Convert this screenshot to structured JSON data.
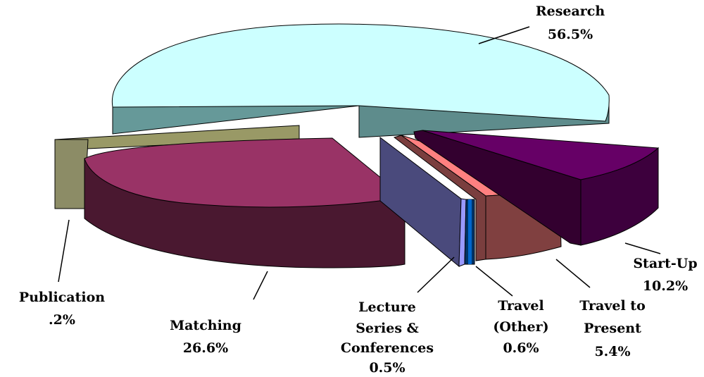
{
  "chart_data": {
    "type": "pie",
    "title": "",
    "slices": [
      {
        "name": "Research",
        "label": "Research",
        "value_label": "56.5%",
        "value": 56.5,
        "color_top": "#ccffff",
        "color_side": "#669999",
        "color_front": "#5e8c8c"
      },
      {
        "name": "Start-Up",
        "label": "Start-Up",
        "value_label": "10.2%",
        "value": 10.2,
        "color_top": "#660066",
        "color_side": "#3d003d",
        "color_front": "#33002f"
      },
      {
        "name": "Travel to Present",
        "label": "Travel to Present",
        "value_label": "5.4%",
        "value": 5.4,
        "color_top": "#ff8080",
        "color_side": "#7f4040",
        "color_front": "#7a3e3e"
      },
      {
        "name": "Travel (Other)",
        "label": "Travel (Other)",
        "value_label": "0.6%",
        "value": 0.6,
        "color_top": "#0066cc",
        "color_side": "#003366",
        "color_front": "#003366"
      },
      {
        "name": "Lecture Series & Conferences",
        "label": "Lecture Series & Conferences",
        "value_label": "0.5%",
        "value": 0.5,
        "color_top": "#9999ff",
        "color_side": "#4d4d80",
        "color_front": "#4a4a7c"
      },
      {
        "name": "Matching",
        "label": "Matching",
        "value_label": "26.6%",
        "value": 26.6,
        "color_top": "#993366",
        "color_side": "#4d1933",
        "color_front": "#4a1830"
      },
      {
        "name": "Publication",
        "label": "Publication",
        "value_label": ".2%",
        "value": 0.2,
        "color_top": "#999966",
        "color_side": "#808060",
        "color_front": "#8c8c66"
      }
    ],
    "legend": "none"
  }
}
